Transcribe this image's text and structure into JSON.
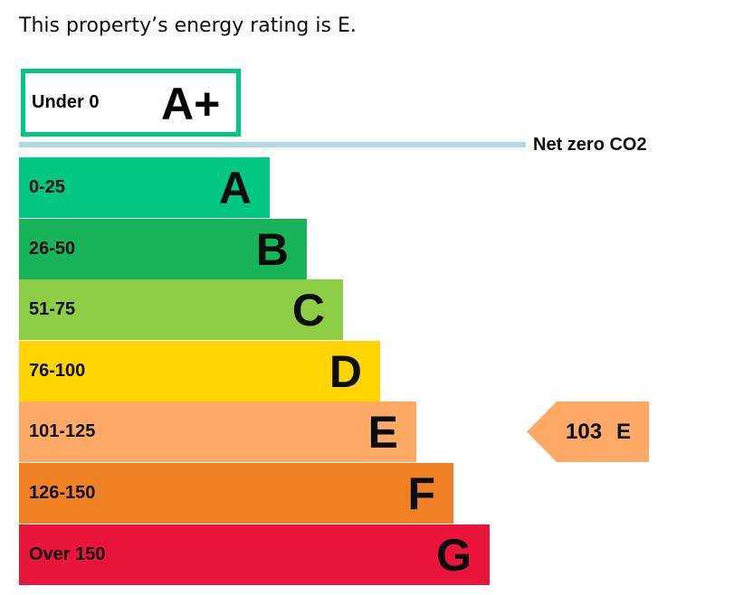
{
  "summary": {
    "text": "This property’s energy rating is E."
  },
  "chart_data": {
    "type": "bar",
    "title": "",
    "xlabel": "",
    "ylabel": "",
    "best_band": {
      "range": "Under 0",
      "letter": "A+",
      "color": "#00c781"
    },
    "net_zero_label": "Net zero CO2",
    "net_zero_color": "#add8e6",
    "categories": [
      "A",
      "B",
      "C",
      "D",
      "E",
      "F",
      "G"
    ],
    "bands": [
      {
        "range": "0-25",
        "letter": "A",
        "color": "#00c781"
      },
      {
        "range": "26-50",
        "letter": "B",
        "color": "#19b459"
      },
      {
        "range": "51-75",
        "letter": "C",
        "color": "#8dce46"
      },
      {
        "range": "76-100",
        "letter": "D",
        "color": "#ffd500"
      },
      {
        "range": "101-125",
        "letter": "E",
        "color": "#fcaa65"
      },
      {
        "range": "126-150",
        "letter": "F",
        "color": "#ef8023"
      },
      {
        "range": "Over 150",
        "letter": "G",
        "color": "#e9153b"
      }
    ],
    "current": {
      "score": "103",
      "letter": "E",
      "color": "#fcaa65"
    }
  }
}
